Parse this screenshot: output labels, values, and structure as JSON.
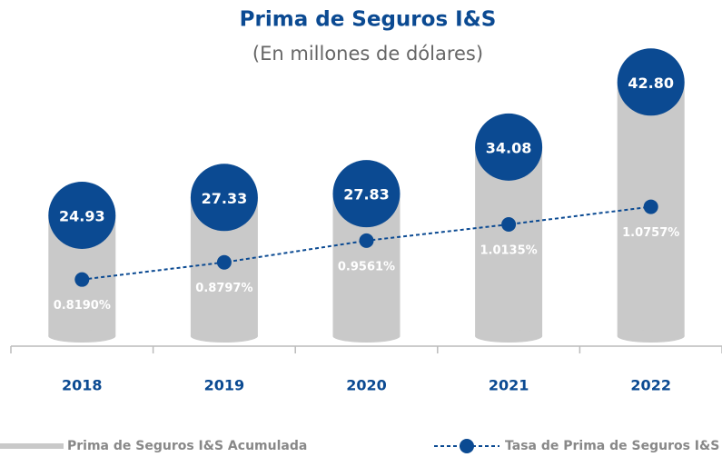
{
  "chart_data": {
    "type": "bar",
    "title": "Prima de Seguros I&S",
    "subtitle": "(En millones de dólares)",
    "categories": [
      "2018",
      "2019",
      "2020",
      "2021",
      "2022"
    ],
    "series": [
      {
        "name": "Prima de Seguros I&S Acumulada",
        "color": "#c9c9c9",
        "cap_color": "#0b4a92",
        "values": [
          24.93,
          27.33,
          27.83,
          34.08,
          42.8
        ],
        "value_labels": [
          "24.93",
          "27.33",
          "27.83",
          "34.08",
          "42.80"
        ]
      },
      {
        "name": "Tasa de Prima de Seguros I&S",
        "type": "line",
        "axis": "y2",
        "color": "#0b4a92",
        "values": [
          0.819,
          0.8797,
          0.9561,
          1.0135,
          1.0757
        ],
        "value_labels": [
          "0.8190%",
          "0.8797%",
          "0.9561%",
          "1.0135%",
          "1.0757%"
        ]
      }
    ],
    "ylim": [
      8,
      46
    ],
    "y2lim": [
      0.6,
      1.6
    ]
  }
}
